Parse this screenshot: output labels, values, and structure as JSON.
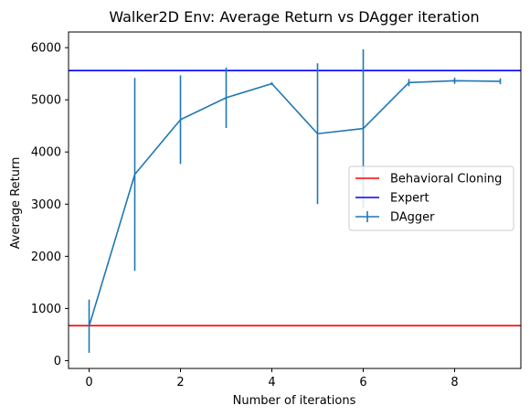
{
  "chart_data": {
    "type": "line",
    "title": "Walker2D Env: Average Return vs DAgger iteration",
    "xlabel": "Number of iterations",
    "ylabel": "Average Return",
    "xlim": [
      -0.45,
      9.45
    ],
    "ylim": [
      -150,
      6300
    ],
    "xticks": [
      0,
      2,
      4,
      6,
      8
    ],
    "yticks": [
      0,
      1000,
      2000,
      3000,
      4000,
      5000,
      6000
    ],
    "legend_position": "center-right",
    "series": [
      {
        "name": "DAgger",
        "kind": "errorbar",
        "color": "#1f77b4",
        "x": [
          0,
          1,
          2,
          3,
          4,
          5,
          6,
          7,
          8,
          9
        ],
        "y": [
          660,
          3570,
          4620,
          5040,
          5310,
          4350,
          4450,
          5330,
          5365,
          5355
        ],
        "yerr": [
          510,
          1850,
          850,
          580,
          30,
          1350,
          1520,
          70,
          60,
          55
        ]
      }
    ],
    "hlines": [
      {
        "name": "Behavioral Cloning",
        "y": 670,
        "color": "#ff0000"
      },
      {
        "name": "Expert",
        "y": 5560,
        "color": "#0000ff"
      }
    ]
  }
}
